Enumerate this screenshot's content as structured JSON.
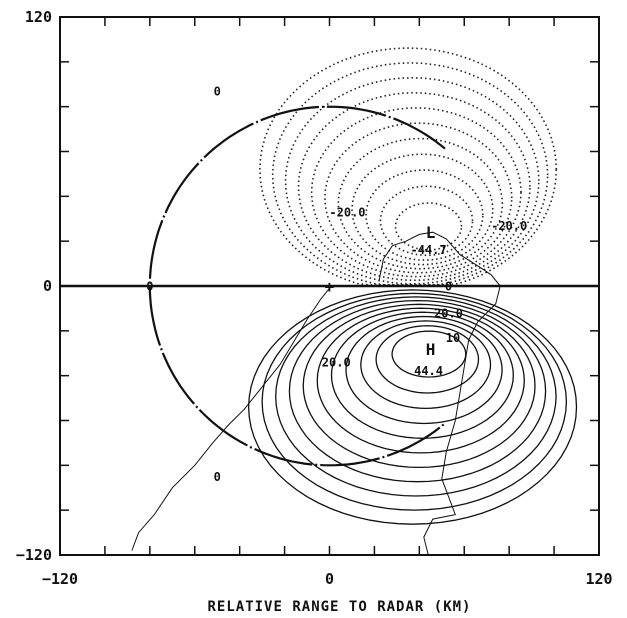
{
  "chart_data": {
    "type": "contour",
    "title": "",
    "xlabel": "RELATIVE RANGE TO RADAR (KM)",
    "ylabel": "",
    "xlim": [
      -120,
      120
    ],
    "ylim": [
      -120,
      120
    ],
    "x_tick_labels": [
      "-120",
      "0",
      "120"
    ],
    "y_tick_labels": [
      "120",
      "0",
      "-120"
    ],
    "x_minor_tick_step": 20,
    "y_minor_tick_step": 20,
    "grid": false,
    "contour_interval": 4,
    "radar": {
      "x": 0,
      "y": 0,
      "marker": "+"
    },
    "zero_line_y": 0,
    "range_ring_radius": 80,
    "features": [
      {
        "label": "L",
        "x": 45,
        "y": 24,
        "kind": "min",
        "value": -44.7,
        "value_label": "-44.7"
      },
      {
        "label": "H",
        "x": 45,
        "y": -28,
        "kind": "max",
        "value": 44.4,
        "value_label": "44.4"
      }
    ],
    "contour_labels": [
      {
        "text": "0",
        "x": -50,
        "y": 85
      },
      {
        "text": "0",
        "x": -80,
        "y": -2
      },
      {
        "text": "0",
        "x": -50,
        "y": -87
      },
      {
        "text": "-20.0",
        "x": 8,
        "y": 31
      },
      {
        "text": "-20.0",
        "x": 80,
        "y": 25
      },
      {
        "text": "0",
        "x": 53,
        "y": -2
      },
      {
        "text": "20.0",
        "x": 53,
        "y": -14
      },
      {
        "text": "20.0",
        "x": 3,
        "y": -36
      },
      {
        "text": "10",
        "x": 55,
        "y": -25
      }
    ],
    "dipole": {
      "min_center": [
        45,
        24
      ],
      "max_center": [
        45,
        -28
      ],
      "neg_levels": [
        4,
        8,
        12,
        16,
        20,
        24,
        28,
        32,
        36,
        40,
        44
      ],
      "pos_levels": [
        4,
        8,
        12,
        16,
        20,
        24,
        28,
        32,
        36,
        40,
        44
      ]
    }
  }
}
